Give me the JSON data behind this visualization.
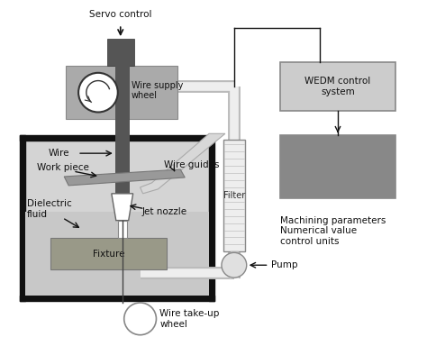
{
  "bg_color": "#ffffff",
  "tank_border_color": "#111111",
  "tank_fill_color": "#d4d4d4",
  "fluid_color": "#c8c8c8",
  "fixture_color": "#999988",
  "fixture_text": "#111111",
  "servo_dark_color": "#555555",
  "wire_supply_color": "#aaaaaa",
  "wedm_box_color": "#cccccc",
  "machining_box_color": "#888888",
  "filter_color": "#eeeeee",
  "filter_stripe_color": "#cccccc",
  "pipe_outer": "#aaaaaa",
  "pipe_inner": "#e8e8e8",
  "wire_rod_color": "#555555",
  "nozzle_color": "#ffffff",
  "nozzle_edge": "#666666",
  "pump_color": "#e0e0e0",
  "arm_color": "#cccccc",
  "arm_edge": "#999999",
  "workpiece_color": "#999999",
  "workpiece_edge": "#777777",
  "arrow_color": "#111111",
  "line_color": "#111111",
  "labels": {
    "servo_control": "Servo control",
    "wire_supply": "Wire supply\nwheel",
    "wire": "Wire",
    "work_piece": "Work piece",
    "wire_guides": "Wire guides",
    "dielectric": "Dielectric\nfluid",
    "jet_nozzle": "Jet nozzle",
    "fixture": "Fixture",
    "wire_takeup": "Wire take-up\nwheel",
    "filter": "Filter",
    "wedm": "WEDM control\nsystem",
    "machining": "Machining parameters\nNumerical value\ncontrol units",
    "pump": "Pump"
  },
  "font_size": 7.5
}
